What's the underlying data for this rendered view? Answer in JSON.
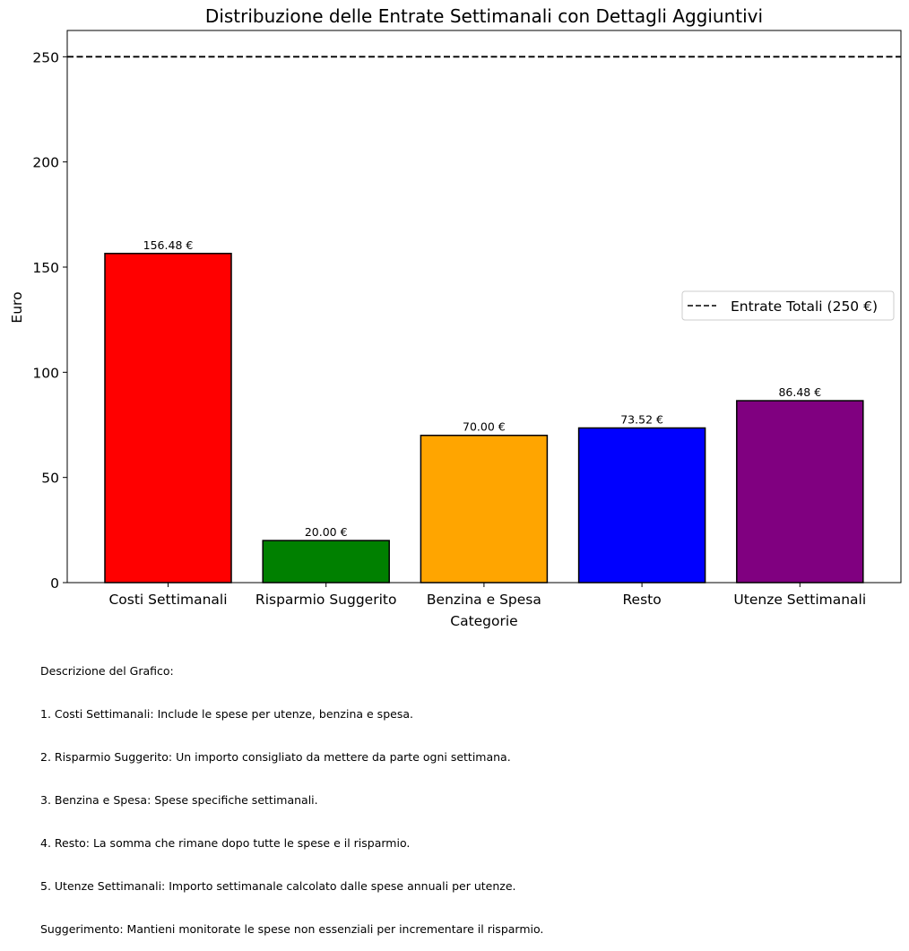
{
  "chart_data": {
    "type": "bar",
    "title": "Distribuzione delle Entrate Settimanali con Dettagli Aggiuntivi",
    "xlabel": "Categorie",
    "ylabel": "Euro",
    "categories": [
      "Costi Settimanali",
      "Risparmio Suggerito",
      "Benzina e Spesa",
      "Resto",
      "Utenze Settimanali"
    ],
    "values": [
      156.48,
      20.0,
      70.0,
      73.52,
      86.48
    ],
    "value_labels": [
      "156.48 €",
      "20.00 €",
      "70.00 €",
      "73.52 €",
      "86.48 €"
    ],
    "colors": [
      "#ff0000",
      "#008000",
      "#ffa500",
      "#0000ff",
      "#800080"
    ],
    "ylim": [
      0,
      262.5
    ],
    "yticks": [
      0,
      50,
      100,
      150,
      200,
      250
    ],
    "reference_line": {
      "value": 250,
      "style": "dashed",
      "color": "#000000"
    },
    "legend": {
      "position": "center-right",
      "entries": [
        "Entrate Totali (250 €)"
      ]
    },
    "grid": false
  },
  "description": {
    "lines": [
      "Descrizione del Grafico:",
      "1. Costi Settimanali: Include le spese per utenze, benzina e spesa.",
      "2. Risparmio Suggerito: Un importo consigliato da mettere da parte ogni settimana.",
      "3. Benzina e Spesa: Spese specifiche settimanali.",
      "4. Resto: La somma che rimane dopo tutte le spese e il risparmio.",
      "5. Utenze Settimanali: Importo settimanale calcolato dalle spese annuali per utenze.",
      "Suggerimento: Mantieni monitorate le spese non essenziali per incrementare il risparmio."
    ]
  }
}
